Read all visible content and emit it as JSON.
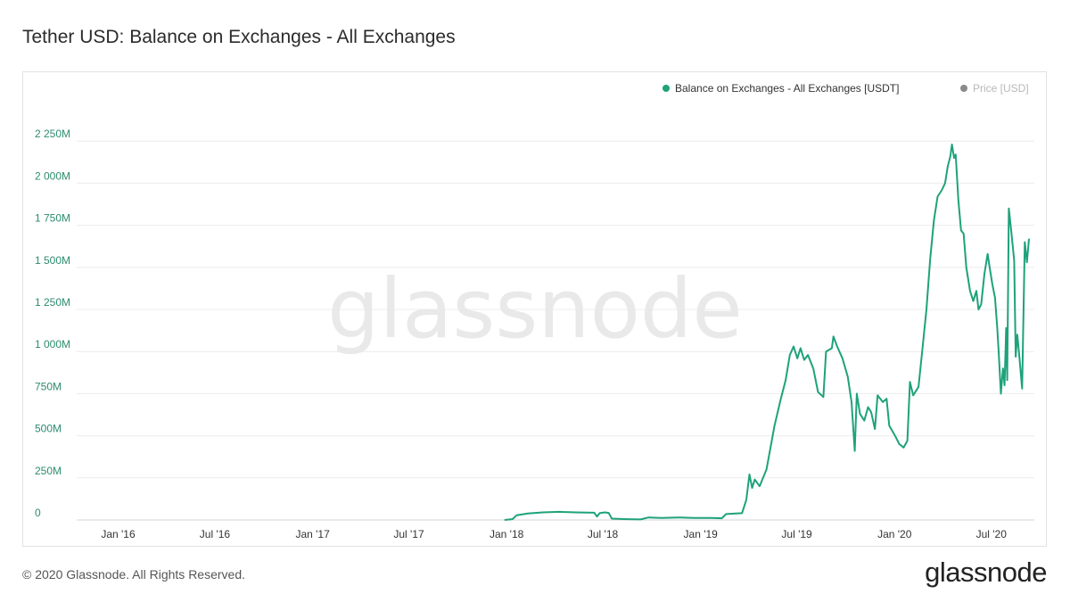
{
  "header": {
    "title": "Tether USD: Balance on Exchanges - All Exchanges"
  },
  "footer": {
    "copyright": "© 2020 Glassnode. All Rights Reserved."
  },
  "brand": {
    "logo_text": "glassnode",
    "watermark": "glassnode"
  },
  "colors": {
    "series": "#1ea27a",
    "price": "#8a8a8a",
    "grid": "#ececec",
    "axis_text": "#2d8c6f"
  },
  "chart_data": {
    "type": "line",
    "title": "Tether USD: Balance on Exchanges - All Exchanges",
    "legend": [
      {
        "label": "Balance on Exchanges - All Exchanges [USDT]",
        "color": "#1ea27a",
        "active": true
      },
      {
        "label": "Price [USD]",
        "color": "#8a8a8a",
        "active": false
      }
    ],
    "legend_position": "top-right",
    "grid": true,
    "x_range": [
      "2015-10-15",
      "2020-09-20"
    ],
    "x_ticks": [
      {
        "label": "Jan '16",
        "date": "2016-01-01"
      },
      {
        "label": "Jul '16",
        "date": "2016-07-01"
      },
      {
        "label": "Jan '17",
        "date": "2017-01-01"
      },
      {
        "label": "Jul '17",
        "date": "2017-07-01"
      },
      {
        "label": "Jan '18",
        "date": "2018-01-01"
      },
      {
        "label": "Jul '18",
        "date": "2018-07-01"
      },
      {
        "label": "Jan '19",
        "date": "2019-01-01"
      },
      {
        "label": "Jul '19",
        "date": "2019-07-01"
      },
      {
        "label": "Jan '20",
        "date": "2020-01-01"
      },
      {
        "label": "Jul '20",
        "date": "2020-07-01"
      }
    ],
    "ylim": [
      0,
      2500
    ],
    "y_unit": "M",
    "y_ticks": [
      {
        "label": "0",
        "value": 0
      },
      {
        "label": "250M",
        "value": 250
      },
      {
        "label": "500M",
        "value": 500
      },
      {
        "label": "750M",
        "value": 750
      },
      {
        "label": "1 000M",
        "value": 1000
      },
      {
        "label": "1 250M",
        "value": 1250
      },
      {
        "label": "1 500M",
        "value": 1500
      },
      {
        "label": "1 750M",
        "value": 1750
      },
      {
        "label": "2 000M",
        "value": 2000
      },
      {
        "label": "2 250M",
        "value": 2250
      }
    ],
    "series": [
      {
        "name": "Balance on Exchanges - All Exchanges [USDT]",
        "points": [
          [
            "2017-12-28",
            0
          ],
          [
            "2018-01-12",
            5
          ],
          [
            "2018-01-20",
            28
          ],
          [
            "2018-02-10",
            38
          ],
          [
            "2018-03-10",
            45
          ],
          [
            "2018-04-10",
            48
          ],
          [
            "2018-05-10",
            45
          ],
          [
            "2018-06-15",
            43
          ],
          [
            "2018-06-20",
            20
          ],
          [
            "2018-06-25",
            40
          ],
          [
            "2018-07-05",
            45
          ],
          [
            "2018-07-12",
            42
          ],
          [
            "2018-07-18",
            8
          ],
          [
            "2018-08-15",
            5
          ],
          [
            "2018-09-10",
            3
          ],
          [
            "2018-09-25",
            15
          ],
          [
            "2018-10-20",
            12
          ],
          [
            "2018-11-20",
            15
          ],
          [
            "2018-12-20",
            12
          ],
          [
            "2019-01-20",
            12
          ],
          [
            "2019-02-10",
            10
          ],
          [
            "2019-02-18",
            35
          ],
          [
            "2019-03-20",
            40
          ],
          [
            "2019-03-28",
            120
          ],
          [
            "2019-04-03",
            270
          ],
          [
            "2019-04-08",
            190
          ],
          [
            "2019-04-13",
            240
          ],
          [
            "2019-04-22",
            200
          ],
          [
            "2019-05-05",
            300
          ],
          [
            "2019-05-12",
            420
          ],
          [
            "2019-05-20",
            560
          ],
          [
            "2019-06-01",
            720
          ],
          [
            "2019-06-10",
            830
          ],
          [
            "2019-06-18",
            980
          ],
          [
            "2019-06-25",
            1030
          ],
          [
            "2019-07-02",
            960
          ],
          [
            "2019-07-08",
            1020
          ],
          [
            "2019-07-15",
            950
          ],
          [
            "2019-07-22",
            980
          ],
          [
            "2019-08-01",
            900
          ],
          [
            "2019-08-10",
            760
          ],
          [
            "2019-08-20",
            730
          ],
          [
            "2019-08-25",
            1000
          ],
          [
            "2019-09-05",
            1020
          ],
          [
            "2019-09-08",
            1090
          ],
          [
            "2019-09-15",
            1030
          ],
          [
            "2019-09-25",
            960
          ],
          [
            "2019-10-05",
            850
          ],
          [
            "2019-10-12",
            700
          ],
          [
            "2019-10-18",
            410
          ],
          [
            "2019-10-22",
            750
          ],
          [
            "2019-10-28",
            630
          ],
          [
            "2019-11-05",
            590
          ],
          [
            "2019-11-12",
            670
          ],
          [
            "2019-11-18",
            640
          ],
          [
            "2019-11-25",
            540
          ],
          [
            "2019-11-30",
            740
          ],
          [
            "2019-12-10",
            700
          ],
          [
            "2019-12-17",
            720
          ],
          [
            "2019-12-22",
            560
          ],
          [
            "2020-01-02",
            500
          ],
          [
            "2020-01-10",
            450
          ],
          [
            "2020-01-18",
            430
          ],
          [
            "2020-01-25",
            470
          ],
          [
            "2020-01-30",
            820
          ],
          [
            "2020-02-05",
            740
          ],
          [
            "2020-02-15",
            790
          ],
          [
            "2020-02-22",
            1000
          ],
          [
            "2020-03-01",
            1250
          ],
          [
            "2020-03-08",
            1550
          ],
          [
            "2020-03-15",
            1780
          ],
          [
            "2020-03-22",
            1920
          ],
          [
            "2020-03-30",
            1960
          ],
          [
            "2020-04-05",
            2000
          ],
          [
            "2020-04-10",
            2100
          ],
          [
            "2020-04-15",
            2160
          ],
          [
            "2020-04-18",
            2230
          ],
          [
            "2020-04-22",
            2150
          ],
          [
            "2020-04-25",
            2170
          ],
          [
            "2020-04-30",
            1900
          ],
          [
            "2020-05-05",
            1720
          ],
          [
            "2020-05-10",
            1700
          ],
          [
            "2020-05-15",
            1500
          ],
          [
            "2020-05-22",
            1360
          ],
          [
            "2020-05-28",
            1300
          ],
          [
            "2020-06-03",
            1360
          ],
          [
            "2020-06-07",
            1250
          ],
          [
            "2020-06-12",
            1280
          ],
          [
            "2020-06-18",
            1460
          ],
          [
            "2020-06-24",
            1580
          ],
          [
            "2020-06-28",
            1500
          ],
          [
            "2020-07-03",
            1400
          ],
          [
            "2020-07-08",
            1320
          ],
          [
            "2020-07-12",
            1150
          ],
          [
            "2020-07-15",
            990
          ],
          [
            "2020-07-19",
            750
          ],
          [
            "2020-07-23",
            900
          ],
          [
            "2020-07-26",
            800
          ],
          [
            "2020-07-29",
            1140
          ],
          [
            "2020-07-31",
            830
          ],
          [
            "2020-08-03",
            1850
          ],
          [
            "2020-08-08",
            1700
          ],
          [
            "2020-08-13",
            1540
          ],
          [
            "2020-08-16",
            970
          ],
          [
            "2020-08-19",
            1100
          ],
          [
            "2020-08-22",
            1000
          ],
          [
            "2020-08-28",
            780
          ],
          [
            "2020-09-02",
            1650
          ],
          [
            "2020-09-06",
            1530
          ],
          [
            "2020-09-10",
            1670
          ]
        ]
      }
    ]
  }
}
